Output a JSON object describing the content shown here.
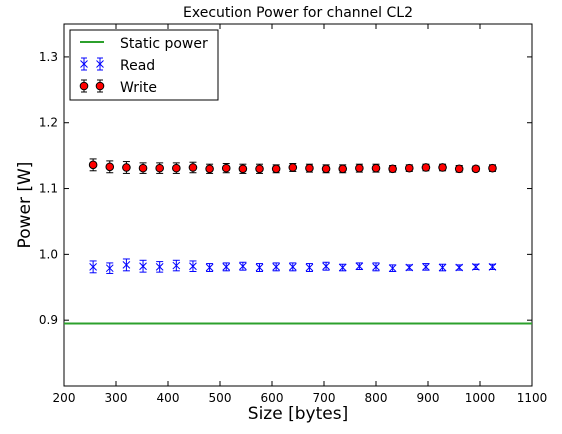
{
  "chart_data": {
    "type": "scatter",
    "title": "Execution Power for channel CL2",
    "xlabel": "Size [bytes]",
    "ylabel": "Power [W]",
    "xlim": [
      200,
      1100
    ],
    "ylim": [
      0.8,
      1.35
    ],
    "xticks": [
      "200",
      "300",
      "400",
      "500",
      "600",
      "700",
      "800",
      "900",
      "1000",
      "1100"
    ],
    "yticks": [
      "0.9",
      "1.0",
      "1.1",
      "1.2",
      "1.3"
    ],
    "grid": false,
    "legend_position": "top-left",
    "static_power": {
      "name": "Static power",
      "value": 0.895,
      "color": "#2ca02c"
    },
    "x": [
      256,
      288,
      320,
      352,
      384,
      416,
      448,
      480,
      512,
      544,
      576,
      608,
      640,
      672,
      704,
      736,
      768,
      800,
      832,
      864,
      896,
      928,
      960,
      992,
      1024
    ],
    "series": [
      {
        "name": "Read",
        "marker": "x",
        "color": "#0000ff",
        "values": [
          0.981,
          0.979,
          0.984,
          0.982,
          0.981,
          0.983,
          0.982,
          0.98,
          0.981,
          0.982,
          0.98,
          0.981,
          0.981,
          0.98,
          0.982,
          0.98,
          0.982,
          0.981,
          0.979,
          0.98,
          0.981,
          0.98,
          0.98,
          0.981,
          0.981
        ],
        "errors": [
          0.009,
          0.008,
          0.009,
          0.009,
          0.008,
          0.008,
          0.008,
          0.006,
          0.006,
          0.006,
          0.006,
          0.006,
          0.006,
          0.006,
          0.006,
          0.005,
          0.005,
          0.006,
          0.005,
          0.004,
          0.005,
          0.005,
          0.004,
          0.004,
          0.004
        ]
      },
      {
        "name": "Write",
        "marker": "o",
        "color": "#ff0000",
        "errcolor": "#000000",
        "values": [
          1.136,
          1.133,
          1.132,
          1.131,
          1.131,
          1.131,
          1.132,
          1.13,
          1.131,
          1.13,
          1.13,
          1.13,
          1.132,
          1.131,
          1.13,
          1.13,
          1.131,
          1.131,
          1.13,
          1.131,
          1.132,
          1.132,
          1.13,
          1.13,
          1.131
        ],
        "errors": [
          0.009,
          0.009,
          0.009,
          0.008,
          0.008,
          0.008,
          0.008,
          0.007,
          0.007,
          0.007,
          0.007,
          0.006,
          0.006,
          0.006,
          0.006,
          0.006,
          0.006,
          0.006,
          0.005,
          0.005,
          0.005,
          0.005,
          0.005,
          0.004,
          0.005
        ]
      }
    ]
  }
}
